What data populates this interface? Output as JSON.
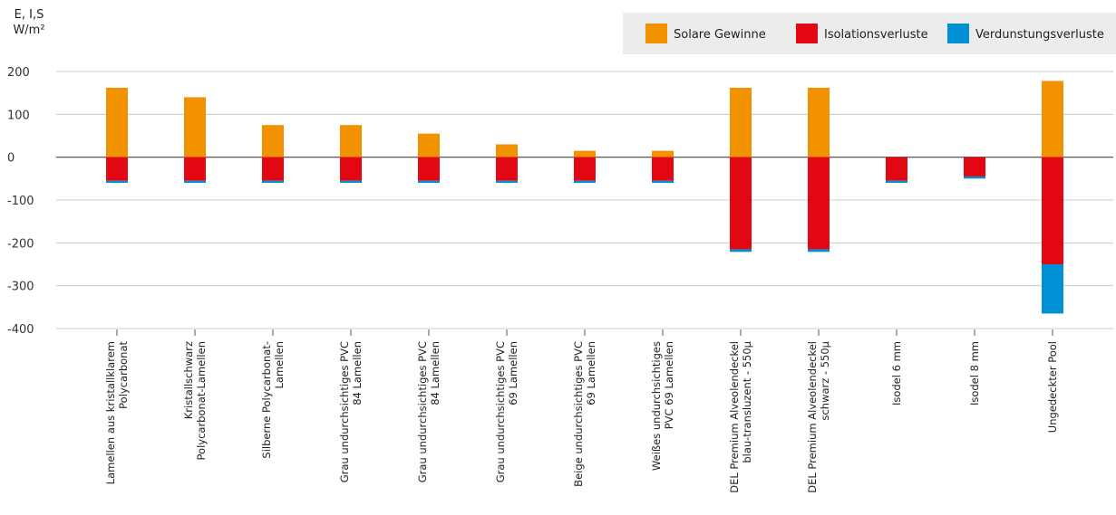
{
  "chart_data": {
    "type": "bar",
    "stacked": true,
    "ylabel_lines": [
      "E, I,S",
      "W/m²"
    ],
    "ylim": [
      -400,
      200
    ],
    "yticks": [
      200,
      100,
      0,
      -100,
      -200,
      -300,
      -400
    ],
    "grid": true,
    "legend_position": "top-right",
    "categories": [
      [
        "Lamellen aus kristallklarem",
        "Polycarbonat"
      ],
      [
        "Kristallschwarz",
        "Polycarbonat-Lamellen"
      ],
      [
        "Silberne Polycarbonat-",
        "Lamellen"
      ],
      [
        "Grau undurchsichtiges PVC",
        "84 Lamellen"
      ],
      [
        "Grau undurchsichtiges PVC",
        "84 Lamellen"
      ],
      [
        "Grau undurchsichtiges PVC",
        "69 Lamellen"
      ],
      [
        "Beige undurchsichtiges PVC",
        "69 Lamellen"
      ],
      [
        "Weißes undurchsichtiges",
        "PVC 69 Lamellen"
      ],
      [
        "DEL Premium Alveolendeckel",
        "blau-transluzent - 550µ"
      ],
      [
        "DEL Premium Alveolendeckel",
        "schwarz - 550µ"
      ],
      [
        "Isodel 6 mm"
      ],
      [
        "Isodel 8 mm"
      ],
      [
        "Ungedeckter Pool"
      ]
    ],
    "series": [
      {
        "name": "Solare Gewinne",
        "color": "#F39200",
        "values": [
          162,
          140,
          75,
          75,
          55,
          30,
          15,
          15,
          162,
          162,
          0,
          0,
          178
        ]
      },
      {
        "name": "Isolationsverluste",
        "color": "#E30613",
        "values": [
          -55,
          -55,
          -55,
          -55,
          -55,
          -55,
          -55,
          -55,
          -215,
          -215,
          -55,
          -45,
          -250
        ]
      },
      {
        "name": "Verdunstungsverluste",
        "color": "#0090D4",
        "values": [
          -5,
          -5,
          -5,
          -5,
          -5,
          -5,
          -5,
          -5,
          -6,
          -6,
          -5,
          -5,
          -115
        ]
      }
    ]
  }
}
